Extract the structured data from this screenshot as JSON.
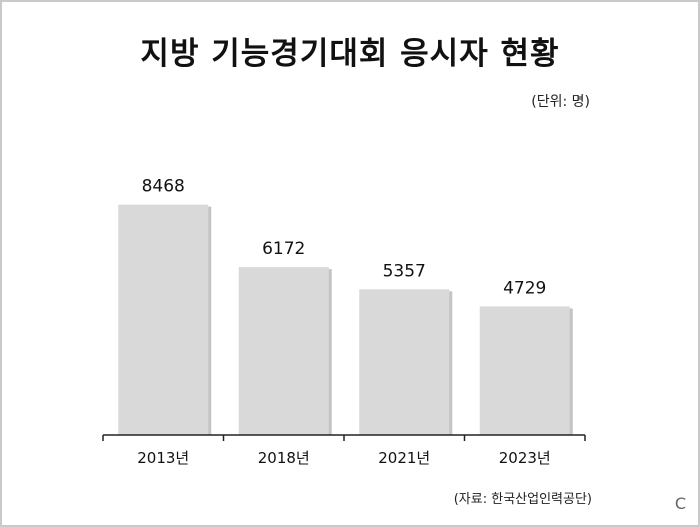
{
  "title": "지방 기능경기대회 응시자 현황",
  "unit_note": "(단위: 명)",
  "source_note": "(자료:  한국산업인력공단)",
  "corner_mark": "C",
  "chart_data": {
    "type": "bar",
    "categories": [
      "2013년",
      "2018년",
      "2021년",
      "2023년"
    ],
    "values": [
      8468,
      6172,
      5357,
      4729
    ],
    "title": "지방 기능경기대회 응시자 현황",
    "ylim": [
      0,
      10000
    ],
    "grid": false,
    "bar_color": "#d9d9d9",
    "axis_color": "#222222"
  }
}
